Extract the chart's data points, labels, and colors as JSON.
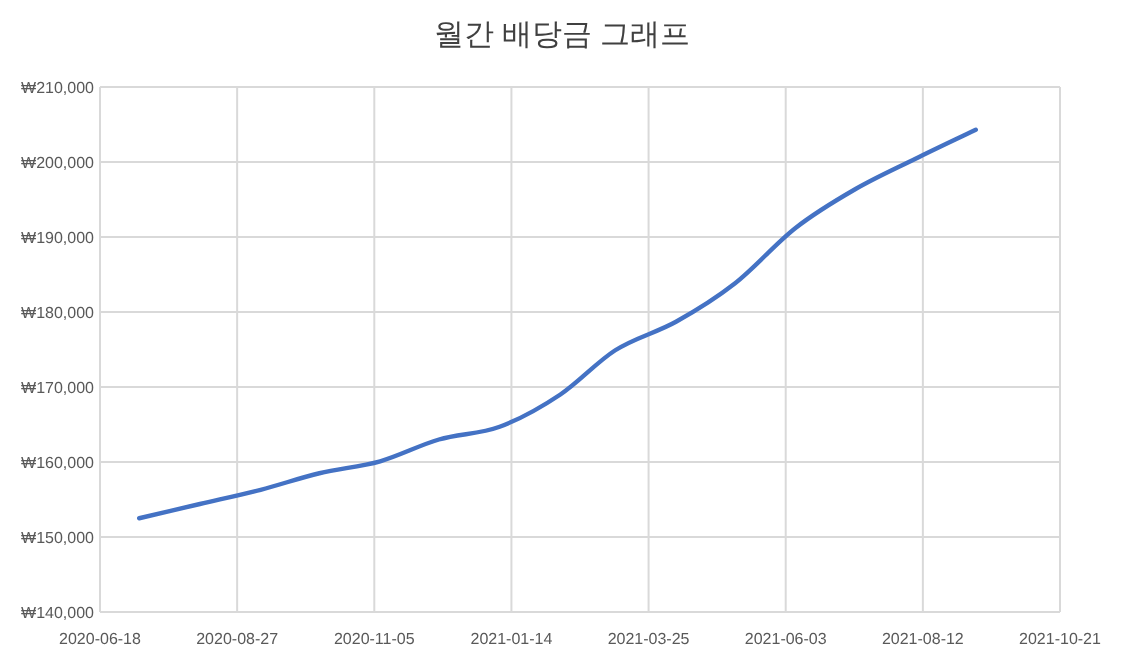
{
  "chart_data": {
    "type": "line",
    "title": "월간 배당금 그래프",
    "x": [
      "2020-07-08",
      "2020-08-08",
      "2020-09-08",
      "2020-10-08",
      "2020-11-08",
      "2020-12-08",
      "2021-01-08",
      "2021-02-08",
      "2021-03-08",
      "2021-04-08",
      "2021-05-08",
      "2021-06-08",
      "2021-07-08",
      "2021-08-08",
      "2021-09-08"
    ],
    "series": [
      {
        "color": "#4472c4",
        "values": [
          152500,
          154400,
          156300,
          158500,
          160100,
          163000,
          164700,
          169000,
          174900,
          178700,
          183800,
          191200,
          196300,
          200400,
          204300
        ]
      }
    ],
    "xlim": [
      "2020-06-18",
      "2021-10-21"
    ],
    "xticks": [
      "2020-06-18",
      "2020-08-27",
      "2020-11-05",
      "2021-01-14",
      "2021-03-25",
      "2021-06-03",
      "2021-08-12",
      "2021-10-21"
    ],
    "ylim": [
      140000,
      210000
    ],
    "yticks": [
      {
        "value": 140000,
        "label": "₩140,000"
      },
      {
        "value": 150000,
        "label": "₩150,000"
      },
      {
        "value": 160000,
        "label": "₩160,000"
      },
      {
        "value": 170000,
        "label": "₩170,000"
      },
      {
        "value": 180000,
        "label": "₩180,000"
      },
      {
        "value": 190000,
        "label": "₩190,000"
      },
      {
        "value": 200000,
        "label": "₩200,000"
      },
      {
        "value": 210000,
        "label": "₩210,000"
      }
    ],
    "grid": true,
    "marker": "none",
    "line_style": "solid"
  }
}
